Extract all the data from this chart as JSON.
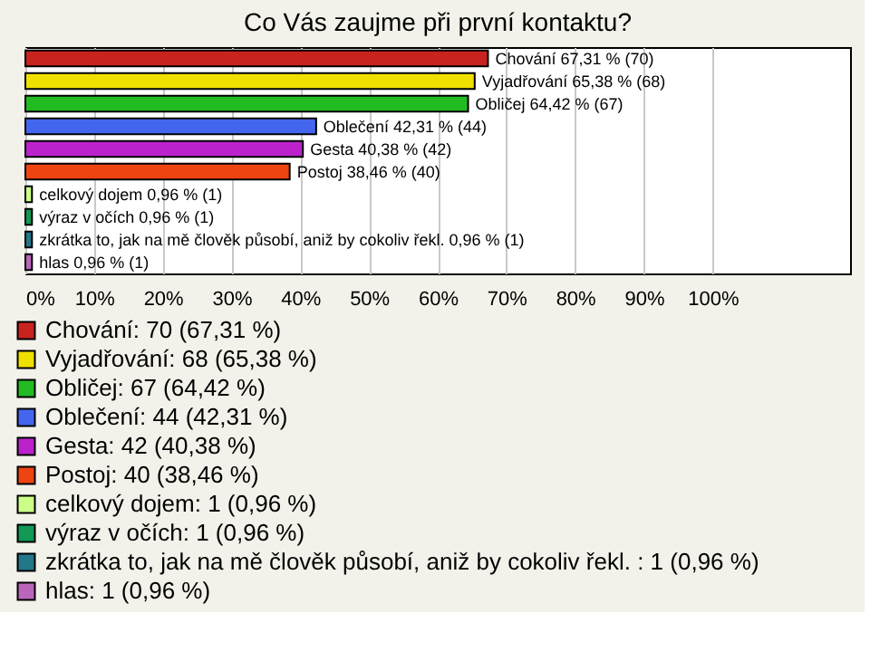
{
  "chart_data": {
    "type": "bar",
    "orientation": "horizontal",
    "title": "Co Vás zaujme při první kontaktu?",
    "categories": [
      "Chování",
      "Vyjadřování",
      "Obličej",
      "Oblečení",
      "Gesta",
      "Postoj",
      "celkový dojem",
      "výraz v očích",
      "zkrátka to, jak na mě člověk působí, aniž by cokoliv řekl.",
      "hlas"
    ],
    "series": [
      {
        "name": "Chování: 70 (67,31 %)",
        "color": "#c8231e",
        "values": [
          67.31,
          null,
          null,
          null,
          null,
          null,
          null,
          null,
          null,
          null
        ],
        "value_labels": [
          "67,31 % (70)",
          null,
          null,
          null,
          null,
          null,
          null,
          null,
          null,
          null
        ]
      },
      {
        "name": "Vyjadřování: 68 (65,38 %)",
        "color": "#f0e000",
        "values": [
          null,
          65.38,
          null,
          null,
          null,
          null,
          null,
          null,
          null,
          null
        ],
        "value_labels": [
          null,
          "65,38 % (68)",
          null,
          null,
          null,
          null,
          null,
          null,
          null,
          null
        ]
      },
      {
        "name": "Obličej: 67 (64,42 %)",
        "color": "#22bb22",
        "values": [
          null,
          null,
          64.42,
          null,
          null,
          null,
          null,
          null,
          null,
          null
        ],
        "value_labels": [
          null,
          null,
          "64,42 % (67)",
          null,
          null,
          null,
          null,
          null,
          null,
          null
        ]
      },
      {
        "name": "Oblečení: 44 (42,31 %)",
        "color": "#4466ee",
        "values": [
          null,
          null,
          null,
          42.31,
          null,
          null,
          null,
          null,
          null,
          null
        ],
        "value_labels": [
          null,
          null,
          null,
          "42,31 % (44)",
          null,
          null,
          null,
          null,
          null,
          null
        ]
      },
      {
        "name": "Gesta: 42 (40,38 %)",
        "color": "#bb22cc",
        "values": [
          null,
          null,
          null,
          null,
          40.38,
          null,
          null,
          null,
          null,
          null
        ],
        "value_labels": [
          null,
          null,
          null,
          null,
          "40,38 % (42)",
          null,
          null,
          null,
          null,
          null
        ]
      },
      {
        "name": "Postoj: 40 (38,46 %)",
        "color": "#ee4411",
        "values": [
          null,
          null,
          null,
          null,
          null,
          38.46,
          null,
          null,
          null,
          null
        ],
        "value_labels": [
          null,
          null,
          null,
          null,
          null,
          "38,46 % (40)",
          null,
          null,
          null,
          null
        ]
      },
      {
        "name": "celkový dojem: 1 (0,96 %)",
        "color": "#ccff88",
        "values": [
          null,
          null,
          null,
          null,
          null,
          null,
          0.96,
          null,
          null,
          null
        ],
        "value_labels": [
          null,
          null,
          null,
          null,
          null,
          null,
          "0,96 % (1)",
          null,
          null,
          null
        ]
      },
      {
        "name": "výraz v očích: 1 (0,96 %)",
        "color": "#119955",
        "values": [
          null,
          null,
          null,
          null,
          null,
          null,
          null,
          0.96,
          null,
          null
        ],
        "value_labels": [
          null,
          null,
          null,
          null,
          null,
          null,
          null,
          "0,96 % (1)",
          null,
          null
        ]
      },
      {
        "name": "zkrátka to, jak na mě člověk působí, aniž by cokoliv řekl. : 1 (0,96 %)",
        "color": "#227788",
        "values": [
          null,
          null,
          null,
          null,
          null,
          null,
          null,
          null,
          0.96,
          null
        ],
        "value_labels": [
          null,
          null,
          null,
          null,
          null,
          null,
          null,
          null,
          "0,96 % (1)",
          null
        ]
      },
      {
        "name": "hlas: 1 (0,96 %)",
        "color": "#bb66bb",
        "values": [
          null,
          null,
          null,
          null,
          null,
          null,
          null,
          null,
          null,
          0.96
        ],
        "value_labels": [
          null,
          null,
          null,
          null,
          null,
          null,
          null,
          null,
          null,
          "0,96 % (1)"
        ]
      }
    ],
    "xlim": [
      0,
      120
    ],
    "xticks": [
      {
        "value": 0,
        "label": "0%"
      },
      {
        "value": 10,
        "label": "10%"
      },
      {
        "value": 20,
        "label": "20%"
      },
      {
        "value": 30,
        "label": "30%"
      },
      {
        "value": 40,
        "label": "40%"
      },
      {
        "value": 50,
        "label": "50%"
      },
      {
        "value": 60,
        "label": "60%"
      },
      {
        "value": 70,
        "label": "70%"
      },
      {
        "value": 80,
        "label": "80%"
      },
      {
        "value": 90,
        "label": "90%"
      },
      {
        "value": 100,
        "label": "100%"
      }
    ],
    "grid": "x",
    "legend": "bottom",
    "tick_labels": "x"
  }
}
